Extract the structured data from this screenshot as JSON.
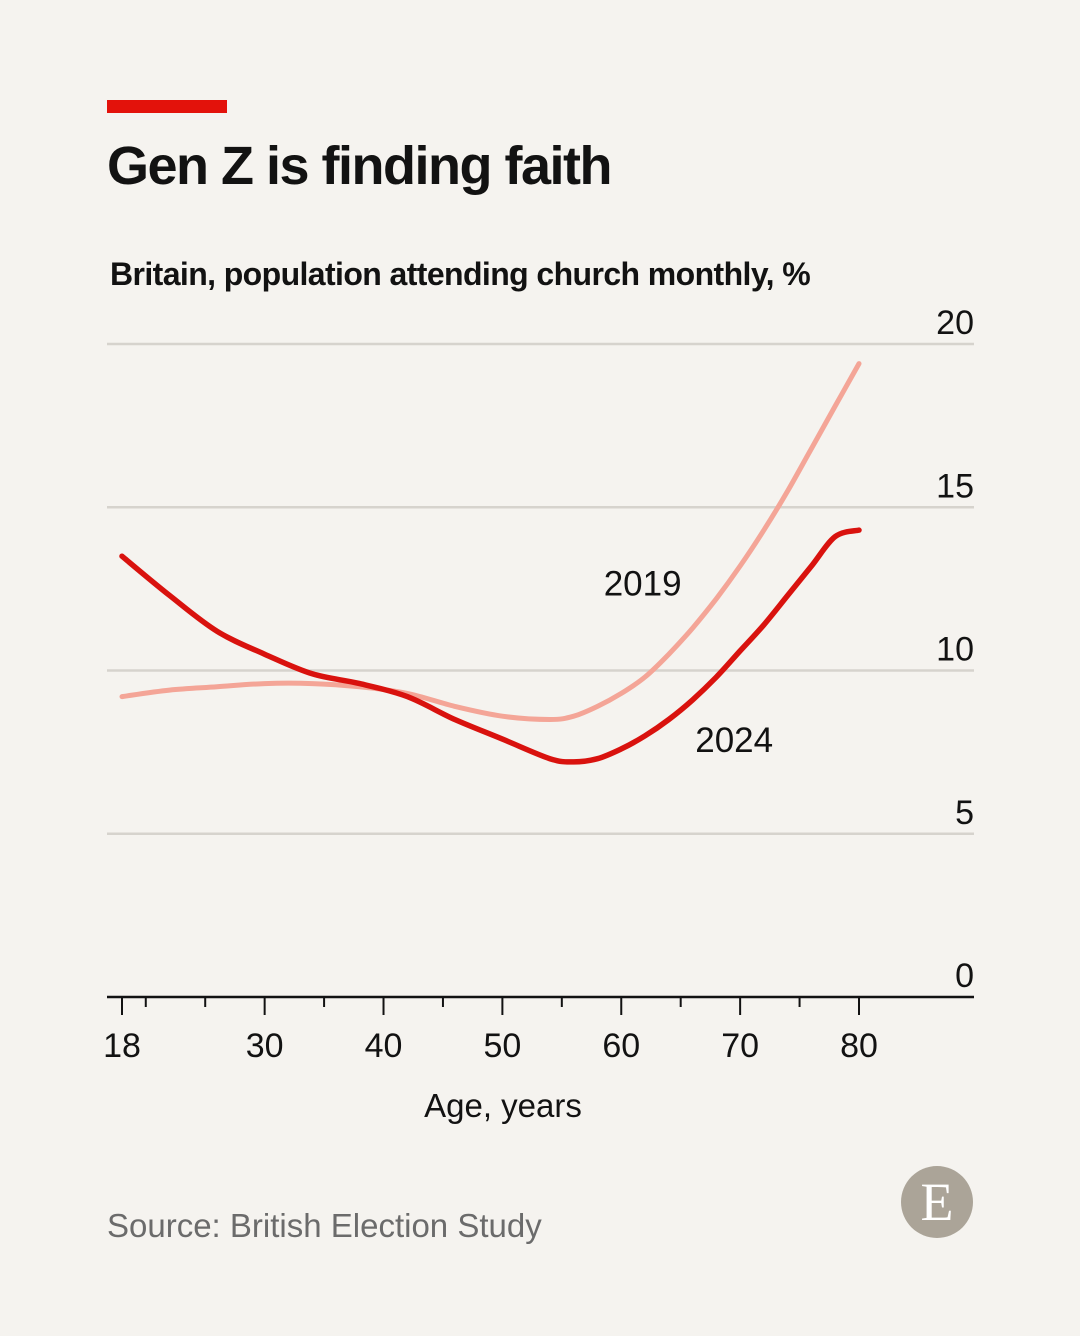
{
  "header": {
    "title": "Gen Z is finding faith",
    "subtitle": "Britain, population attending church monthly, %"
  },
  "source": "Source: British Election Study",
  "logo": {
    "letter": "E",
    "color": "#aba498"
  },
  "chart_data": {
    "type": "line",
    "title": "Gen Z is finding faith",
    "subtitle": "Britain, population attending church monthly, %",
    "xlabel": "Age, years",
    "ylabel": "",
    "xlim": [
      18,
      80
    ],
    "ylim": [
      0,
      20
    ],
    "x_ticks": [
      18,
      30,
      40,
      50,
      60,
      70,
      80
    ],
    "x_minor_ticks": [
      20,
      25,
      35,
      45,
      55,
      65,
      75
    ],
    "y_ticks": [
      0,
      5,
      10,
      15,
      20
    ],
    "y_axis_position": "right",
    "grid": true,
    "legend": "inline labels",
    "series": [
      {
        "name": "2019",
        "color": "#f4a597",
        "label_at": [
          61.8,
          12.3
        ],
        "x": [
          18,
          22,
          26,
          30,
          34,
          38,
          42,
          46,
          50,
          54,
          56,
          58,
          60,
          62,
          64,
          66,
          68,
          70,
          72,
          74,
          76,
          78,
          80
        ],
        "y": [
          9.2,
          9.4,
          9.5,
          9.6,
          9.6,
          9.5,
          9.3,
          8.9,
          8.6,
          8.5,
          8.6,
          8.9,
          9.3,
          9.8,
          10.5,
          11.3,
          12.2,
          13.2,
          14.3,
          15.5,
          16.8,
          18.1,
          19.4
        ]
      },
      {
        "name": "2024",
        "color": "#d9120e",
        "label_at": [
          69.5,
          7.5
        ],
        "x": [
          18,
          22,
          26,
          30,
          34,
          38,
          42,
          46,
          50,
          54,
          56,
          58,
          60,
          62,
          64,
          66,
          68,
          70,
          72,
          74,
          76,
          78,
          80
        ],
        "y": [
          13.5,
          12.3,
          11.2,
          10.5,
          9.9,
          9.6,
          9.2,
          8.5,
          7.9,
          7.3,
          7.2,
          7.3,
          7.6,
          8.0,
          8.5,
          9.1,
          9.8,
          10.6,
          11.4,
          12.3,
          13.2,
          14.1,
          14.3
        ]
      }
    ]
  }
}
